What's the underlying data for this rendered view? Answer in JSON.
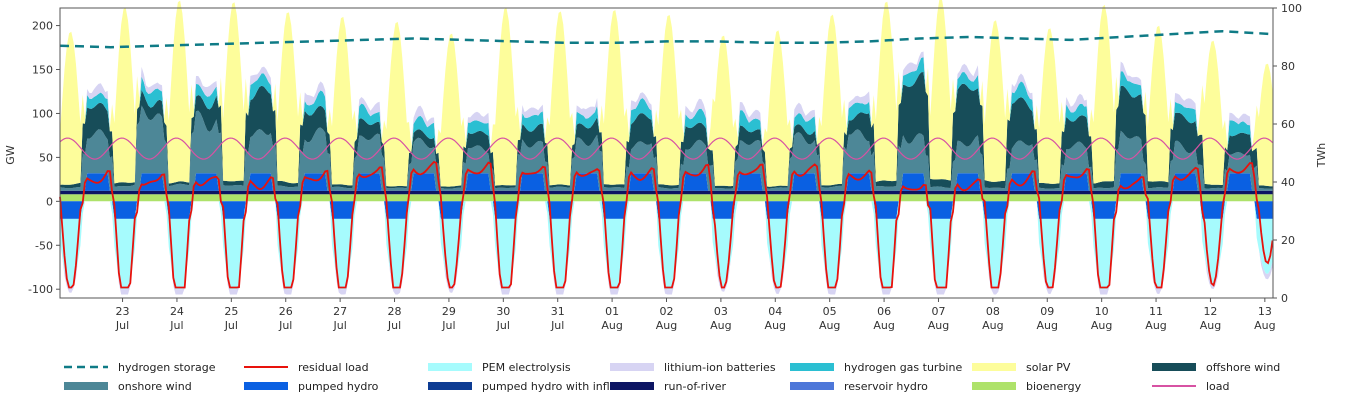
{
  "chart_data": {
    "type": "area",
    "title": "",
    "ylabel_left": "GW",
    "ylabel_right": "TWh",
    "ylim_left": [
      -110,
      220
    ],
    "ylim_right": [
      0,
      100
    ],
    "yticks_left": [
      -100,
      -50,
      0,
      50,
      100,
      150,
      200
    ],
    "yticks_right": [
      0,
      20,
      40,
      60,
      80,
      100
    ],
    "x_days": [
      {
        "day": "23",
        "month": "Jul"
      },
      {
        "day": "24",
        "month": "Jul"
      },
      {
        "day": "25",
        "month": "Jul"
      },
      {
        "day": "26",
        "month": "Jul"
      },
      {
        "day": "27",
        "month": "Jul"
      },
      {
        "day": "28",
        "month": "Jul"
      },
      {
        "day": "29",
        "month": "Jul"
      },
      {
        "day": "30",
        "month": "Jul"
      },
      {
        "day": "31",
        "month": "Jul"
      },
      {
        "day": "01",
        "month": "Aug"
      },
      {
        "day": "02",
        "month": "Aug"
      },
      {
        "day": "03",
        "month": "Aug"
      },
      {
        "day": "04",
        "month": "Aug"
      },
      {
        "day": "05",
        "month": "Aug"
      },
      {
        "day": "06",
        "month": "Aug"
      },
      {
        "day": "07",
        "month": "Aug"
      },
      {
        "day": "08",
        "month": "Aug"
      },
      {
        "day": "09",
        "month": "Aug"
      },
      {
        "day": "10",
        "month": "Aug"
      },
      {
        "day": "11",
        "month": "Aug"
      },
      {
        "day": "12",
        "month": "Aug"
      },
      {
        "day": "13",
        "month": "Aug"
      }
    ],
    "x_start_day": 22.35,
    "x_end_day": 13.65,
    "day_peaks_solar_gw": [
      175,
      200,
      207,
      205,
      195,
      192,
      188,
      175,
      203,
      198,
      200,
      195,
      172,
      178,
      195,
      205,
      208,
      185,
      178,
      202,
      178,
      165,
      140
    ],
    "offshore_wind_gw_daily": [
      15,
      42,
      18,
      25,
      55,
      30,
      20,
      12,
      22,
      22,
      20,
      35,
      25,
      18,
      12,
      22,
      75,
      70,
      55,
      35,
      65,
      42,
      25
    ],
    "onshore_wind_gw_daily": [
      45,
      50,
      85,
      80,
      62,
      55,
      48,
      40,
      35,
      45,
      50,
      42,
      38,
      40,
      48,
      60,
      55,
      45,
      40,
      35,
      52,
      38,
      30
    ],
    "pumped_hydro_gw": 20,
    "bioenergy_gw": 8,
    "run_of_river_gw": 4,
    "hydrogen_storage_twh": [
      87,
      86.5,
      87,
      87.5,
      88,
      88.5,
      89,
      89.5,
      89,
      88.5,
      88,
      88,
      88.5,
      88.5,
      88,
      88,
      88.5,
      89.5,
      90,
      89.5,
      89,
      90,
      91,
      92,
      91
    ],
    "series": [
      {
        "name": "hydrogen storage",
        "color": "#0f7b86",
        "style": "dashed line",
        "axis": "right"
      },
      {
        "name": "residual load",
        "color": "#e8120c",
        "style": "line"
      },
      {
        "name": "PEM electrolysis",
        "color": "#a6fbfd",
        "style": "area"
      },
      {
        "name": "lithium-ion batteries",
        "color": "#d7d4f3",
        "style": "area"
      },
      {
        "name": "hydrogen gas turbine",
        "color": "#2bbfd2",
        "style": "area"
      },
      {
        "name": "solar PV",
        "color": "#fdfd9b",
        "style": "area"
      },
      {
        "name": "offshore wind",
        "color": "#174d59",
        "style": "area"
      },
      {
        "name": "onshore wind",
        "color": "#4d8797",
        "style": "area"
      },
      {
        "name": "pumped hydro",
        "color": "#0a60e2",
        "style": "area"
      },
      {
        "name": "pumped hydro with inflow",
        "color": "#0d3c93",
        "style": "area"
      },
      {
        "name": "run-of-river",
        "color": "#0c1563",
        "style": "area"
      },
      {
        "name": "reservoir hydro",
        "color": "#4d77d9",
        "style": "area"
      },
      {
        "name": "bioenergy",
        "color": "#aee26a",
        "style": "area"
      },
      {
        "name": "load",
        "color": "#d752a3",
        "style": "line"
      }
    ]
  },
  "legend": [
    {
      "label": "hydrogen storage",
      "color": "#0f7b86",
      "kind": "dashed"
    },
    {
      "label": "residual load",
      "color": "#e8120c",
      "kind": "line"
    },
    {
      "label": "PEM electrolysis",
      "color": "#a6fbfd",
      "kind": "box"
    },
    {
      "label": "lithium-ion batteries",
      "color": "#d7d4f3",
      "kind": "box"
    },
    {
      "label": "hydrogen gas turbine",
      "color": "#2bbfd2",
      "kind": "box"
    },
    {
      "label": "solar PV",
      "color": "#fdfd9b",
      "kind": "box"
    },
    {
      "label": "offshore wind",
      "color": "#174d59",
      "kind": "box"
    },
    {
      "label": "onshore wind",
      "color": "#4d8797",
      "kind": "box"
    },
    {
      "label": "pumped hydro",
      "color": "#0a60e2",
      "kind": "box"
    },
    {
      "label": "pumped hydro with inflow",
      "color": "#0d3c93",
      "kind": "box"
    },
    {
      "label": "run-of-river",
      "color": "#0c1563",
      "kind": "box"
    },
    {
      "label": "reservoir hydro",
      "color": "#4d77d9",
      "kind": "box"
    },
    {
      "label": "bioenergy",
      "color": "#aee26a",
      "kind": "box"
    },
    {
      "label": "load",
      "color": "#d752a3",
      "kind": "line"
    }
  ]
}
